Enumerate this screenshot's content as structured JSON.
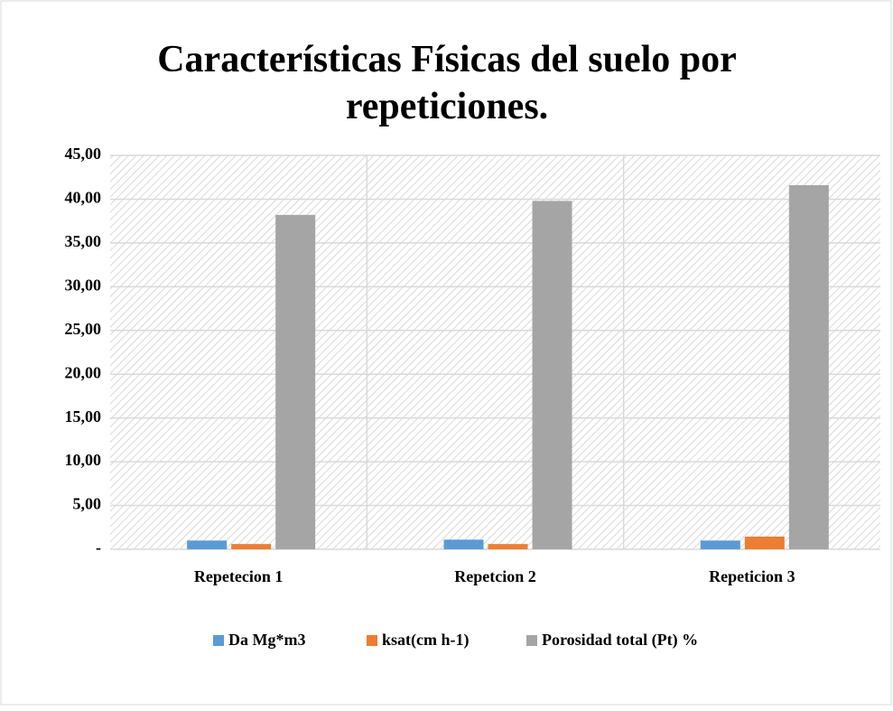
{
  "chart_data": {
    "type": "bar",
    "title": "Características Físicas del suelo por repeticiones.",
    "categories": [
      "Repetecion 1",
      "Repetcion 2",
      "Repeticion 3"
    ],
    "series": [
      {
        "name": "Da Mg*m3",
        "color": "#5b9bd5",
        "values": [
          1.0,
          1.1,
          1.0
        ]
      },
      {
        "name": "ksat(cm h-1)",
        "color": "#ed7d31",
        "values": [
          0.6,
          0.6,
          1.45
        ]
      },
      {
        "name": "Porosidad total (Pt) %",
        "color": "#a5a5a5",
        "values": [
          38.2,
          39.8,
          41.6
        ]
      }
    ],
    "ylim": [
      0,
      45
    ],
    "yticks": [
      {
        "value": 0,
        "label": "-"
      },
      {
        "value": 5,
        "label": "5,00"
      },
      {
        "value": 10,
        "label": "10,00"
      },
      {
        "value": 15,
        "label": "15,00"
      },
      {
        "value": 20,
        "label": "20,00"
      },
      {
        "value": 25,
        "label": "25,00"
      },
      {
        "value": 30,
        "label": "30,00"
      },
      {
        "value": 35,
        "label": "35,00"
      },
      {
        "value": 40,
        "label": "40,00"
      },
      {
        "value": 45,
        "label": "45,00"
      }
    ],
    "grid": true,
    "legend": "bottom"
  }
}
